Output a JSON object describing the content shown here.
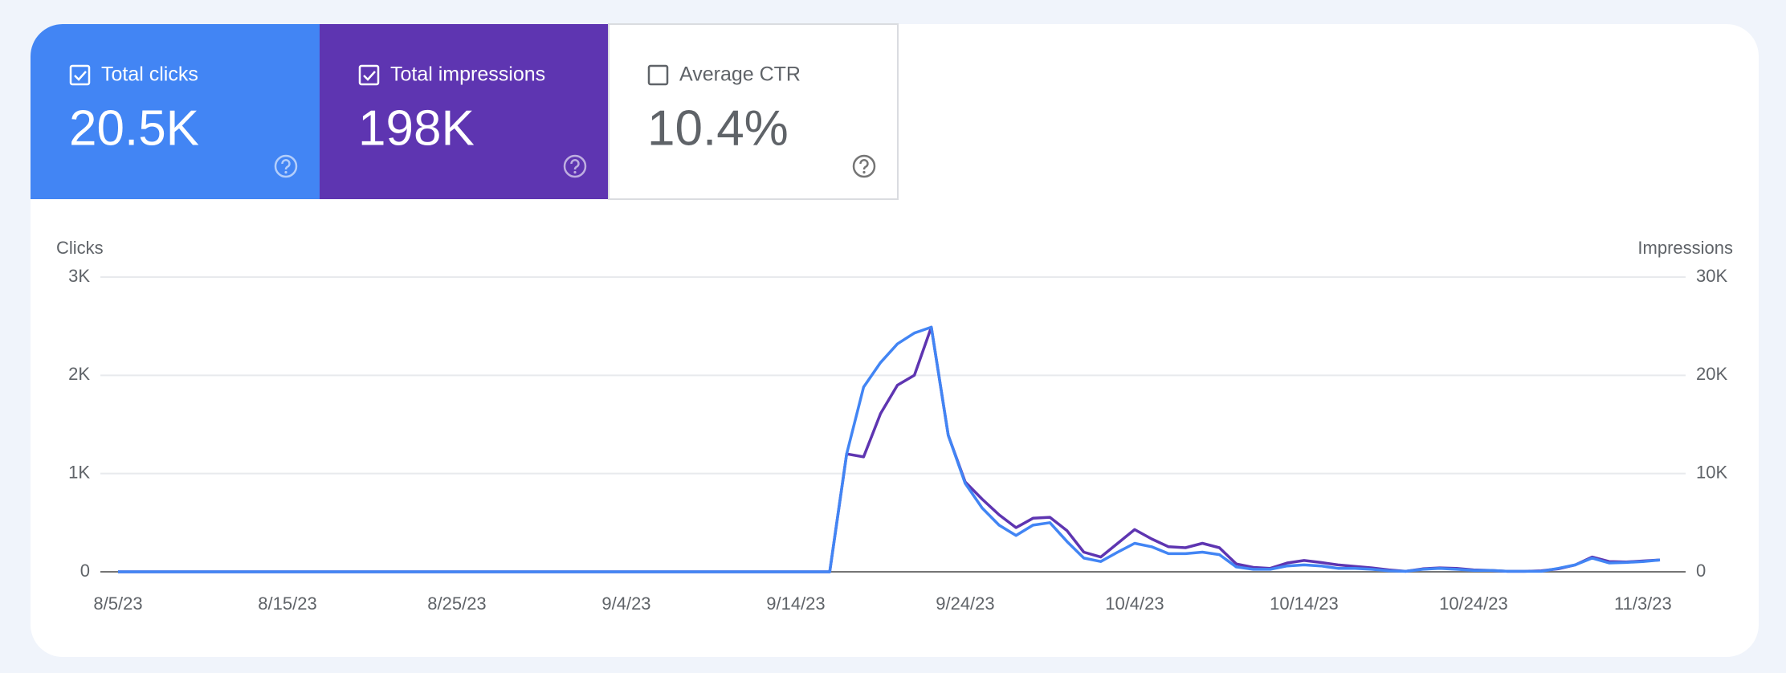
{
  "metrics": [
    {
      "label": "Total clicks",
      "value": "20.5K",
      "checked": true,
      "color": "#4285f4"
    },
    {
      "label": "Total impressions",
      "value": "198K",
      "checked": true,
      "color": "#5e35b1"
    },
    {
      "label": "Average CTR",
      "value": "10.4%",
      "checked": false
    }
  ],
  "chart_data": {
    "type": "line",
    "ylabel": "Clicks",
    "y2label": "Impressions",
    "categories": [
      "8/5/23",
      null,
      null,
      null,
      null,
      null,
      null,
      null,
      null,
      null,
      "8/15/23",
      null,
      null,
      null,
      null,
      null,
      null,
      null,
      null,
      null,
      "8/25/23",
      null,
      null,
      null,
      null,
      null,
      null,
      null,
      null,
      null,
      "9/4/23",
      null,
      null,
      null,
      null,
      null,
      null,
      null,
      null,
      null,
      "9/14/23",
      null,
      null,
      null,
      null,
      null,
      null,
      null,
      null,
      null,
      "9/24/23",
      null,
      null,
      null,
      null,
      null,
      null,
      null,
      null,
      null,
      "10/4/23",
      null,
      null,
      null,
      null,
      null,
      null,
      null,
      null,
      null,
      "10/14/23",
      null,
      null,
      null,
      null,
      null,
      null,
      null,
      null,
      null,
      "10/24/23",
      null,
      null,
      null,
      null,
      null,
      null,
      null,
      null,
      null,
      "11/3/23",
      null
    ],
    "series": [
      {
        "color": "#5e35b1",
        "axis": "y2",
        "values": [
          0,
          0,
          0,
          0,
          0,
          0,
          0,
          0,
          0,
          0,
          0,
          0,
          0,
          0,
          0,
          0,
          0,
          0,
          0,
          0,
          0,
          0,
          0,
          0,
          0,
          0,
          0,
          0,
          0,
          0,
          0,
          0,
          0,
          0,
          0,
          0,
          0,
          0,
          0,
          0,
          0,
          0,
          0,
          12000,
          11700,
          16100,
          19000,
          20000,
          24900,
          13900,
          9150,
          7400,
          5800,
          4500,
          5450,
          5550,
          4200,
          2000,
          1500,
          2900,
          4300,
          3350,
          2550,
          2450,
          2900,
          2450,
          800,
          450,
          350,
          900,
          1150,
          950,
          700,
          550,
          400,
          200,
          50,
          300,
          400,
          350,
          200,
          150,
          50,
          50,
          100,
          300,
          700,
          1500,
          1050,
          1000,
          1100,
          1200
        ]
      },
      {
        "color": "#4285f4",
        "values": [
          0,
          0,
          0,
          0,
          0,
          0,
          0,
          0,
          0,
          0,
          0,
          0,
          0,
          0,
          0,
          0,
          0,
          0,
          0,
          0,
          0,
          0,
          0,
          0,
          0,
          0,
          0,
          0,
          0,
          0,
          0,
          0,
          0,
          0,
          0,
          0,
          0,
          0,
          0,
          0,
          0,
          0,
          0,
          1200,
          1880,
          2130,
          2320,
          2430,
          2490,
          1390,
          900,
          650,
          475,
          370,
          475,
          500,
          310,
          140,
          105,
          200,
          290,
          255,
          185,
          185,
          200,
          175,
          50,
          25,
          25,
          60,
          70,
          60,
          35,
          35,
          25,
          10,
          5,
          25,
          35,
          25,
          15,
          15,
          5,
          5,
          5,
          35,
          70,
          140,
          90,
          95,
          105,
          120
        ]
      }
    ],
    "ylim": [
      0,
      3000
    ],
    "yticks": [
      {
        "value": 0,
        "label": "0"
      },
      {
        "value": 1000,
        "label": "1K"
      },
      {
        "value": 2000,
        "label": "2K"
      },
      {
        "value": 3000,
        "label": "3K"
      }
    ],
    "y2lim": [
      0,
      30000
    ],
    "y2ticks": [
      {
        "value": 0,
        "label": "0"
      },
      {
        "value": 10000,
        "label": "10K"
      },
      {
        "value": 20000,
        "label": "20K"
      },
      {
        "value": 30000,
        "label": "30K"
      }
    ],
    "grid": true
  }
}
